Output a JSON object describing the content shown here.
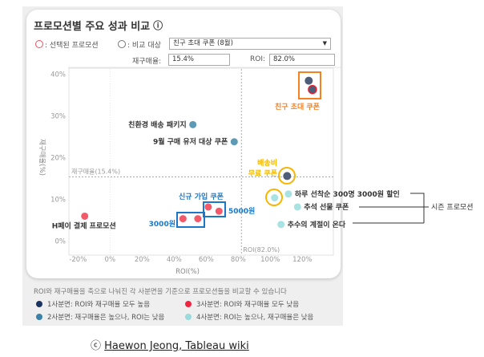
{
  "title": "프로모션별 주요 성과 비교",
  "info_icon": "ⓘ",
  "selected_legend": ": 선택된 프로모션",
  "compare_legend": ": 비교 대상",
  "dropdown_value": "친구 초대 쿠폰 (8월)",
  "repurchase_label": "재구매율:",
  "repurchase_value": "15.4%",
  "roi_label": "ROI:",
  "roi_value": "82.0%",
  "note": "ROI와 재구매율을 축으로 나눠진 각 사분면을 기준으로 프로모션들을 비교할 수 있습니다",
  "quadrants": [
    {
      "label": "1사분면: ROI와 재구매율 모두 높음",
      "color": "#1c3461"
    },
    {
      "label": "2사분면: 재구매율은 높으나, ROI는 낮음",
      "color": "#3a82a8"
    },
    {
      "label": "3사분면: ROI와 재구매율 모두 낮음",
      "color": "#f0253f"
    },
    {
      "label": "4사분면: ROI는 높으나, 재구매율은 낮음",
      "color": "#9adada"
    }
  ],
  "credit_symbol": "ⓒ",
  "credit": "Haewon Jeong, Tableau wiki",
  "chart_data": {
    "type": "scatter",
    "xlabel": "ROI(%)",
    "ylabel": "재구매율(%)",
    "xlim": [
      -25,
      135
    ],
    "ylim": [
      0,
      40
    ],
    "xticks": [
      "-20%",
      "0%",
      "20%",
      "40%",
      "60%",
      "80%",
      "100%",
      "120%"
    ],
    "yticks": [
      "0%",
      "10%",
      "20%",
      "30%",
      "40%"
    ],
    "ref_lines": {
      "x": 82.0,
      "x_label": "ROI(82.0%)",
      "y": 15.4,
      "y_label": "재구매율(15.4%)"
    },
    "points": [
      {
        "roi": 124,
        "rep": 38.4,
        "quadrant": 1
      },
      {
        "roi": 126.3,
        "rep": 36.3,
        "quadrant": 1,
        "selected": true
      },
      {
        "roi": 51.7,
        "rep": 27.9,
        "quadrant": 2,
        "label": "친환경 배송 패키지"
      },
      {
        "roi": 77.5,
        "rep": 23.8,
        "quadrant": 2,
        "label": "9월 구매 유저 대상 쿠폰"
      },
      {
        "roi": 110.5,
        "rep": 15.6,
        "quadrant": 1
      },
      {
        "roi": 111.3,
        "rep": 11.3,
        "quadrant": 4,
        "label": "하루 선착순 300명 3000원 할인"
      },
      {
        "roi": 102.7,
        "rep": 10.4,
        "quadrant": 4
      },
      {
        "roi": 117,
        "rep": 8.2,
        "quadrant": 4,
        "label": "추석 선물 쿠폰"
      },
      {
        "roi": 106.7,
        "rep": 4.0,
        "quadrant": 4,
        "label": "추수의 계절이 온다"
      },
      {
        "roi": -15.8,
        "rep": 6.0,
        "quadrant": 3,
        "label": "H페이 결제 프로모션"
      },
      {
        "roi": 45.5,
        "rep": 5.4,
        "quadrant": 3
      },
      {
        "roi": 54.8,
        "rep": 5.4,
        "quadrant": 3
      },
      {
        "roi": 61.3,
        "rep": 8.2,
        "quadrant": 3
      },
      {
        "roi": 68,
        "rep": 7.2,
        "quadrant": 3
      }
    ],
    "annotations": {
      "friend": "친구 초대 쿠폰",
      "shipping": "배송비",
      "shipping2": "무료 쿠폰",
      "signup": "신규 가입 쿠폰",
      "w3000": "3000원",
      "w5000": "5000원",
      "season": "시즌 프로모션"
    }
  }
}
